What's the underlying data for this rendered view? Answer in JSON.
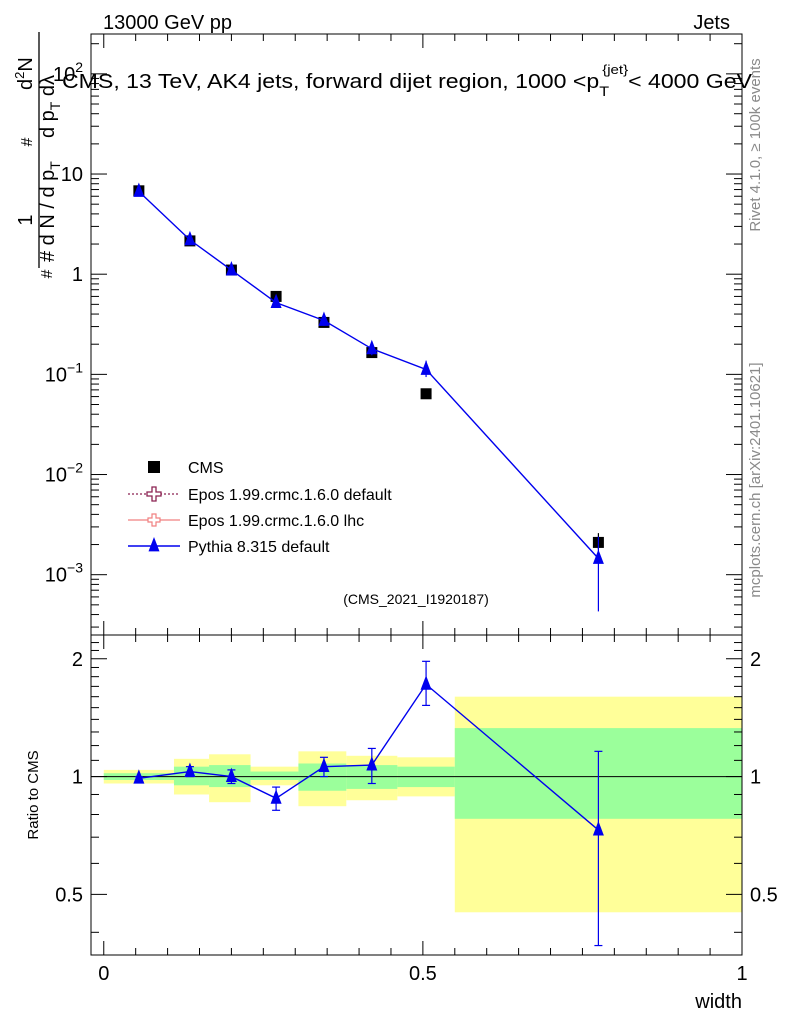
{
  "header": {
    "left": "13000 GeV pp",
    "right": "Jets"
  },
  "side_labels": {
    "rivet": "Rivet 4.1.0, ≥ 100k events",
    "mcplots": "mcplots.cern.ch [arXiv:2401.10621]"
  },
  "colors": {
    "data": "#000000",
    "pythia": "#0000ee",
    "epos_default": "#8b2252",
    "epos_lhc": "#f08080",
    "band_inner": "#9bff9b",
    "band_outer": "#ffff99"
  },
  "chart_data": [
    {
      "type": "scatter",
      "panel": "main",
      "title": "CMS, 13 TeV, AK4 jets, forward dijet region, 1000 <p_T^{jet}< 4000 GeV",
      "title_parts": {
        "pre": "CMS, 13 TeV, AK4 jets, forward dijet region, 1000 <p",
        "sub": "T",
        "sup": "{jet}",
        "post": "< 4000 GeV"
      },
      "ylabel": "1/(dN/dp_T) d^2N/(dp_T dλ)",
      "ylabel_parts": {
        "a": "#",
        "b": "d N / d p",
        "c": "T",
        "d": "1",
        "e": "d p",
        "f": "T",
        "g": "dλ",
        "h": "d",
        "i": "2",
        "j": "N",
        "k": "#",
        "l": "#"
      },
      "yscale": "log",
      "ylim": [
        0.00025,
        250
      ],
      "xlim": [
        -0.02,
        1.0
      ],
      "yticks": [
        {
          "value": 0.001,
          "base": "10",
          "exp": "−3"
        },
        {
          "value": 0.01,
          "base": "10",
          "exp": "−2"
        },
        {
          "value": 0.1,
          "base": "10",
          "exp": "−1"
        },
        {
          "value": 1,
          "label": "1"
        },
        {
          "value": 10,
          "label": "10"
        },
        {
          "value": 100,
          "base": "10",
          "exp": "2"
        }
      ],
      "watermark": "(CMS_2021_I1920187)",
      "legend_position": "lower-left",
      "series": [
        {
          "name": "CMS",
          "marker": "square",
          "x": [
            0.055,
            0.135,
            0.2,
            0.27,
            0.345,
            0.42,
            0.505,
            0.775
          ],
          "y": [
            6.8,
            2.15,
            1.1,
            0.6,
            0.33,
            0.165,
            0.064,
            0.0021
          ],
          "yerr_low": [
            0.3,
            0.1,
            0.05,
            0.03,
            0.02,
            0.012,
            0.005,
            0.0003
          ],
          "yerr_high": [
            0.3,
            0.1,
            0.05,
            0.03,
            0.02,
            0.012,
            0.005,
            0.0005
          ]
        },
        {
          "name": "Epos 1.99.crmc.1.6.0 default",
          "marker": "open-cross",
          "x": [],
          "y": []
        },
        {
          "name": "Epos 1.99.crmc.1.6.0 lhc",
          "marker": "open-cross",
          "x": [],
          "y": []
        },
        {
          "name": "Pythia 8.315 default",
          "marker": "triangle",
          "x": [
            0.055,
            0.135,
            0.2,
            0.27,
            0.345,
            0.42,
            0.505,
            0.775
          ],
          "y": [
            6.7,
            2.2,
            1.1,
            0.52,
            0.345,
            0.18,
            0.112,
            0.00145
          ],
          "yerr_low": [
            0.2,
            0.09,
            0.06,
            0.04,
            0.04,
            0.025,
            0.018,
            0.00102
          ],
          "yerr_high": [
            0.2,
            0.09,
            0.06,
            0.04,
            0.04,
            0.03,
            0.025,
            0.00095
          ]
        }
      ]
    },
    {
      "type": "line",
      "panel": "ratio",
      "ylabel": "Ratio to CMS",
      "xlabel": "width",
      "ylim": [
        0.35,
        2.3
      ],
      "xlim": [
        -0.02,
        1.0
      ],
      "yticks": [
        0.5,
        1,
        2
      ],
      "xticks": [
        {
          "value": 0,
          "label": "0"
        },
        {
          "value": 0.5,
          "label": "0.5"
        },
        {
          "value": 1,
          "label": "1"
        }
      ],
      "bands": [
        {
          "x0": 0.0,
          "x1": 0.11,
          "inner": [
            0.98,
            1.02
          ],
          "outer": [
            0.96,
            1.04
          ]
        },
        {
          "x0": 0.11,
          "x1": 0.165,
          "inner": [
            0.95,
            1.06
          ],
          "outer": [
            0.9,
            1.11
          ]
        },
        {
          "x0": 0.165,
          "x1": 0.23,
          "inner": [
            0.94,
            1.07
          ],
          "outer": [
            0.86,
            1.14
          ]
        },
        {
          "x0": 0.23,
          "x1": 0.305,
          "inner": [
            0.98,
            1.03
          ],
          "outer": [
            0.95,
            1.06
          ]
        },
        {
          "x0": 0.305,
          "x1": 0.38,
          "inner": [
            0.92,
            1.08
          ],
          "outer": [
            0.84,
            1.16
          ]
        },
        {
          "x0": 0.38,
          "x1": 0.46,
          "inner": [
            0.93,
            1.07
          ],
          "outer": [
            0.87,
            1.13
          ]
        },
        {
          "x0": 0.46,
          "x1": 0.55,
          "inner": [
            0.94,
            1.06
          ],
          "outer": [
            0.89,
            1.12
          ]
        },
        {
          "x0": 0.55,
          "x1": 1.0,
          "inner": [
            0.78,
            1.33
          ],
          "outer": [
            0.45,
            1.6
          ]
        }
      ],
      "series": [
        {
          "name": "Pythia 8.315 default / CMS",
          "x": [
            0.055,
            0.135,
            0.2,
            0.27,
            0.345,
            0.42,
            0.505,
            0.775
          ],
          "y": [
            0.99,
            1.03,
            1.0,
            0.88,
            1.06,
            1.07,
            1.72,
            0.73
          ],
          "yerr_low": [
            0.01,
            0.03,
            0.04,
            0.06,
            0.06,
            0.11,
            0.2,
            0.36
          ],
          "yerr_high": [
            0.01,
            0.03,
            0.04,
            0.06,
            0.06,
            0.11,
            0.25,
            0.43
          ]
        }
      ]
    }
  ]
}
